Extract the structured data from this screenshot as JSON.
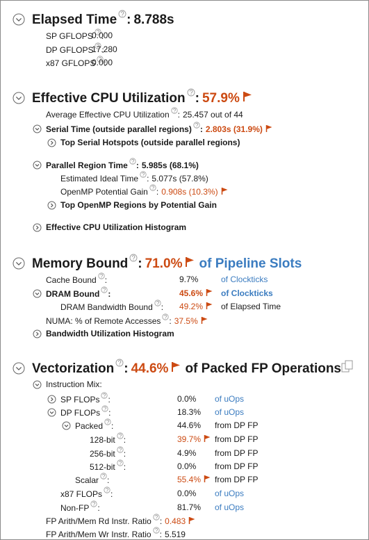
{
  "sections": [
    {
      "title": "Elapsed Time",
      "help": true,
      "value": "8.788s",
      "rows": [
        {
          "label": "SP GFLOPS",
          "help": true,
          "value": "0.000"
        },
        {
          "label": "DP GFLOPS",
          "help": true,
          "value": "17.280"
        },
        {
          "label": "x87 GFLOPS",
          "help": true,
          "value": "0.000"
        }
      ]
    },
    {
      "title": "Effective CPU Utilization",
      "help": true,
      "value": "57.9%",
      "flag": true,
      "rows": [
        {
          "label": "Average Effective CPU Utilization",
          "help": true,
          "value": "25.457 out of 44"
        },
        {
          "label": "Serial Time (outside parallel regions)",
          "bold": true,
          "expand": "open",
          "help": true,
          "value": "2.803s (31.9%)",
          "flag": true
        },
        {
          "label": "Top Serial Hotspots (outside parallel regions)",
          "bold": true,
          "expand": "closed"
        },
        {
          "label": "Parallel Region Time",
          "bold": true,
          "expand": "open",
          "help": true,
          "value": "5.985s (68.1%)"
        },
        {
          "label": "Estimated Ideal Time",
          "help": true,
          "value": "5.077s (57.8%)"
        },
        {
          "label": "OpenMP Potential Gain",
          "help": true,
          "value": "0.908s (10.3%)",
          "flag": true
        },
        {
          "label": "Top OpenMP Regions by Potential Gain",
          "bold": true,
          "expand": "closed"
        },
        {
          "label": "Effective CPU Utilization Histogram",
          "bold": true,
          "expand": "closed"
        }
      ]
    },
    {
      "title": "Memory Bound",
      "help": true,
      "value": "71.0%",
      "flag": true,
      "unit": "of Pipeline Slots",
      "unit_link": true,
      "rows": [
        {
          "label": "Cache Bound",
          "help": true,
          "value": "9.7%",
          "unit": "of Clockticks",
          "unit_link": true
        },
        {
          "label": "DRAM Bound",
          "bold": true,
          "expand": "open",
          "help": true,
          "value": "45.6%",
          "flag": true,
          "unit": "of Clockticks",
          "unit_link": true
        },
        {
          "label": "DRAM Bandwidth Bound",
          "help": true,
          "value": "49.2%",
          "flag": true,
          "unit": "of Elapsed Time"
        },
        {
          "label": "NUMA: % of Remote Accesses",
          "help": true,
          "value": "37.5%",
          "flag": true
        },
        {
          "label": "Bandwidth Utilization Histogram",
          "bold": true,
          "expand": "closed"
        }
      ]
    },
    {
      "title": "Vectorization",
      "help": true,
      "value": "44.6%",
      "flag": true,
      "unit": "of Packed FP Operations",
      "copy": true,
      "rows": [
        {
          "label": "Instruction Mix:",
          "expand": "open"
        },
        {
          "label": "SP FLOPs",
          "expand": "closed",
          "help": true,
          "value": "0.0%",
          "unit": "of uOps",
          "unit_link": true
        },
        {
          "label": "DP FLOPs",
          "expand": "open",
          "help": true,
          "value": "18.3%",
          "unit": "of uOps",
          "unit_link": true
        },
        {
          "label": "Packed",
          "expand": "open",
          "help": true,
          "value": "44.6%",
          "unit": "from DP FP"
        },
        {
          "label": "128-bit",
          "help": true,
          "value": "39.7%",
          "flag": true,
          "unit": "from DP FP"
        },
        {
          "label": "256-bit",
          "help": true,
          "value": "4.9%",
          "unit": "from DP FP"
        },
        {
          "label": "512-bit",
          "help": true,
          "value": "0.0%",
          "unit": "from DP FP"
        },
        {
          "label": "Scalar",
          "help": true,
          "value": "55.4%",
          "flag": true,
          "unit": "from DP FP"
        },
        {
          "label": "x87 FLOPs",
          "help": true,
          "value": "0.0%",
          "unit": "of uOps",
          "unit_link": true
        },
        {
          "label": "Non-FP",
          "help": true,
          "value": "81.7%",
          "unit": "of uOps",
          "unit_link": true
        },
        {
          "label": "FP Arith/Mem Rd Instr. Ratio",
          "help": true,
          "value": "0.483",
          "flag": true
        },
        {
          "label": "FP Arith/Mem Wr Instr. Ratio",
          "help": true,
          "value": "5.519"
        }
      ]
    }
  ]
}
